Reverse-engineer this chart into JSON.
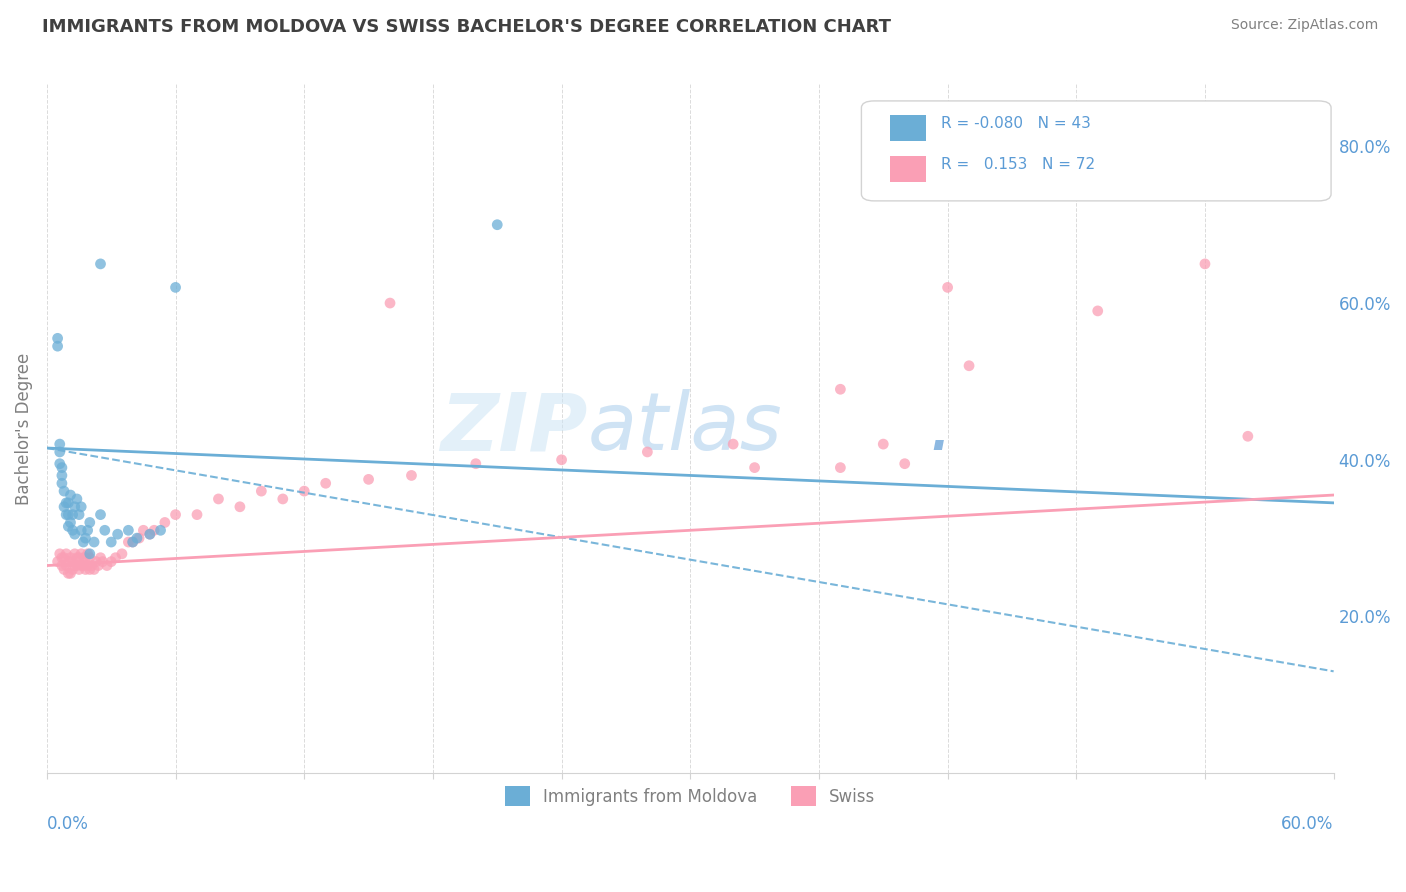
{
  "title": "IMMIGRANTS FROM MOLDOVA VS SWISS BACHELOR'S DEGREE CORRELATION CHART",
  "source": "Source: ZipAtlas.com",
  "ylabel": "Bachelor's Degree",
  "ylabel_right_ticks": [
    "80.0%",
    "60.0%",
    "40.0%",
    "20.0%"
  ],
  "ylabel_right_vals": [
    0.8,
    0.6,
    0.4,
    0.2
  ],
  "xlim": [
    0.0,
    0.6
  ],
  "ylim": [
    0.0,
    0.88
  ],
  "color_blue": "#6baed6",
  "color_pink": "#fa9fb5",
  "color_text": "#5b9bd5",
  "blue_scatter_x": [
    0.005,
    0.005,
    0.006,
    0.006,
    0.006,
    0.007,
    0.007,
    0.007,
    0.008,
    0.008,
    0.009,
    0.009,
    0.01,
    0.01,
    0.01,
    0.011,
    0.011,
    0.012,
    0.012,
    0.013,
    0.013,
    0.014,
    0.015,
    0.016,
    0.016,
    0.017,
    0.018,
    0.019,
    0.02,
    0.02,
    0.022,
    0.025,
    0.027,
    0.03,
    0.033,
    0.038,
    0.04,
    0.042,
    0.048,
    0.053,
    0.06,
    0.21,
    0.025
  ],
  "blue_scatter_y": [
    0.545,
    0.555,
    0.395,
    0.41,
    0.42,
    0.37,
    0.38,
    0.39,
    0.34,
    0.36,
    0.33,
    0.345,
    0.315,
    0.33,
    0.345,
    0.32,
    0.355,
    0.31,
    0.33,
    0.305,
    0.34,
    0.35,
    0.33,
    0.31,
    0.34,
    0.295,
    0.3,
    0.31,
    0.28,
    0.32,
    0.295,
    0.33,
    0.31,
    0.295,
    0.305,
    0.31,
    0.295,
    0.3,
    0.305,
    0.31,
    0.62,
    0.7,
    0.65
  ],
  "pink_scatter_x": [
    0.005,
    0.006,
    0.007,
    0.007,
    0.008,
    0.008,
    0.009,
    0.009,
    0.01,
    0.01,
    0.011,
    0.011,
    0.012,
    0.012,
    0.013,
    0.013,
    0.014,
    0.014,
    0.015,
    0.015,
    0.016,
    0.016,
    0.017,
    0.017,
    0.018,
    0.018,
    0.019,
    0.019,
    0.02,
    0.02,
    0.021,
    0.022,
    0.023,
    0.024,
    0.025,
    0.026,
    0.028,
    0.03,
    0.032,
    0.035,
    0.038,
    0.04,
    0.043,
    0.045,
    0.048,
    0.05,
    0.055,
    0.06,
    0.07,
    0.08,
    0.09,
    0.1,
    0.11,
    0.12,
    0.13,
    0.15,
    0.17,
    0.2,
    0.24,
    0.28,
    0.32,
    0.37,
    0.43,
    0.49,
    0.54,
    0.33,
    0.39,
    0.42,
    0.37,
    0.16,
    0.4,
    0.56
  ],
  "pink_scatter_y": [
    0.27,
    0.28,
    0.265,
    0.275,
    0.26,
    0.275,
    0.265,
    0.28,
    0.255,
    0.27,
    0.255,
    0.275,
    0.26,
    0.27,
    0.265,
    0.28,
    0.265,
    0.275,
    0.26,
    0.275,
    0.265,
    0.28,
    0.265,
    0.275,
    0.26,
    0.275,
    0.265,
    0.28,
    0.26,
    0.275,
    0.265,
    0.26,
    0.27,
    0.265,
    0.275,
    0.27,
    0.265,
    0.27,
    0.275,
    0.28,
    0.295,
    0.295,
    0.3,
    0.31,
    0.305,
    0.31,
    0.32,
    0.33,
    0.33,
    0.35,
    0.34,
    0.36,
    0.35,
    0.36,
    0.37,
    0.375,
    0.38,
    0.395,
    0.4,
    0.41,
    0.42,
    0.49,
    0.52,
    0.59,
    0.65,
    0.39,
    0.42,
    0.62,
    0.39,
    0.6,
    0.395,
    0.43
  ],
  "blue_line_x": [
    0.0,
    0.6
  ],
  "blue_line_y": [
    0.415,
    0.345
  ],
  "pink_line_x": [
    0.0,
    0.6
  ],
  "pink_line_y": [
    0.265,
    0.355
  ],
  "dashed_line_x": [
    0.0,
    0.6
  ],
  "dashed_line_y": [
    0.415,
    0.13
  ]
}
